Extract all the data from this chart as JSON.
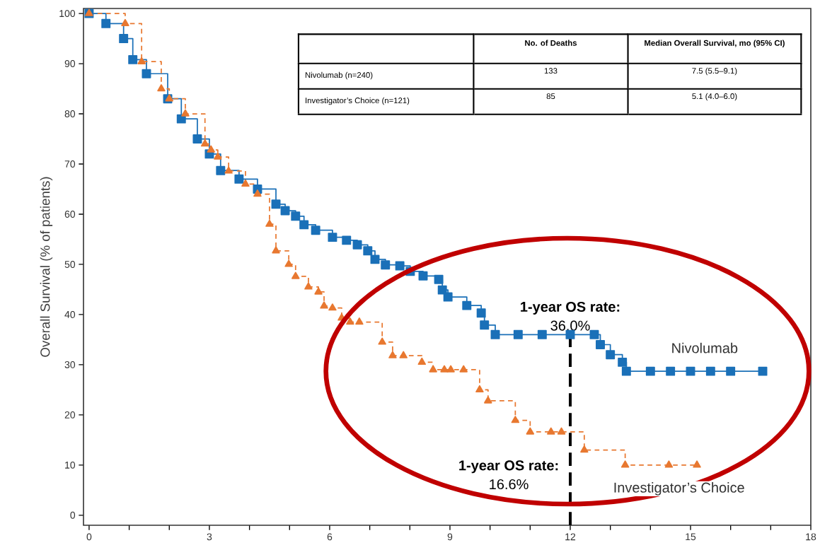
{
  "chart_data": {
    "type": "step",
    "ylabel": "Overall Survival (% of patients)",
    "xlim": [
      -0.14,
      18.0
    ],
    "ylim": [
      -2,
      101
    ],
    "xticks": [
      0,
      {
        "value": 1,
        "label": null
      },
      {
        "value": 2,
        "label": null
      },
      3,
      {
        "value": 4,
        "label": null
      },
      {
        "value": 5,
        "label": null
      },
      6,
      {
        "value": 7,
        "label": null
      },
      {
        "value": 8,
        "label": null
      },
      9,
      {
        "value": 10,
        "label": null
      },
      {
        "value": 11,
        "label": null
      },
      12,
      {
        "value": 13,
        "label": null
      },
      {
        "value": 14,
        "label": null
      },
      15,
      {
        "value": 16,
        "label": null
      },
      {
        "value": 17,
        "label": null
      },
      18
    ],
    "yticks": [
      0,
      10,
      20,
      30,
      40,
      50,
      60,
      70,
      80,
      90,
      100
    ],
    "series": [
      {
        "name": "Nivolumab",
        "color": "#1a70b8",
        "marker": "square",
        "line_style": "solid",
        "x": [
          0,
          0.42,
          0.86,
          1.09,
          1.43,
          1.96,
          2.3,
          2.7,
          3.0,
          3.28,
          3.74,
          4.2,
          4.66,
          4.89,
          5.15,
          5.36,
          5.65,
          6.07,
          6.42,
          6.69,
          6.95,
          7.13,
          7.39,
          7.75,
          8.01,
          8.33,
          8.72,
          8.81,
          8.95,
          9.42,
          9.78,
          9.86,
          10.13,
          10.7,
          11.3,
          12.0,
          12.6,
          12.75,
          13.0,
          13.3,
          13.4,
          14.0,
          14.5,
          15.0,
          15.5,
          16.0,
          16.8
        ],
        "values": [
          100,
          98,
          95,
          90.8,
          88,
          83,
          79,
          75,
          72,
          68.7,
          67,
          65,
          62,
          60.7,
          59.6,
          57.9,
          56.8,
          55.4,
          54.8,
          53.9,
          52.7,
          51,
          49.9,
          49.7,
          48.6,
          47.7,
          47,
          44.9,
          43.5,
          41.8,
          40.3,
          37.9,
          36.0,
          36.0,
          36.0,
          36.0,
          36.0,
          34,
          32,
          30.5,
          28.7,
          28.7,
          28.7,
          28.7,
          28.7,
          28.7,
          28.7
        ]
      },
      {
        "name": "Investigator’s Choice",
        "color": "#e87830",
        "marker": "triangle",
        "line_style": "dashed",
        "x": [
          0,
          0.9,
          1.31,
          1.8,
          2.0,
          2.4,
          2.89,
          3.04,
          3.21,
          3.48,
          3.9,
          4.2,
          4.5,
          4.66,
          4.98,
          5.15,
          5.47,
          5.72,
          5.86,
          6.07,
          6.3,
          6.51,
          6.74,
          7.31,
          7.57,
          7.84,
          8.3,
          8.58,
          8.86,
          9.02,
          9.34,
          9.74,
          9.95,
          10.63,
          11.0,
          11.52,
          11.78,
          12.35,
          13.37,
          14.46,
          15.16
        ],
        "values": [
          100,
          98,
          90.4,
          85,
          83,
          80,
          74,
          72.8,
          71.4,
          68.6,
          66,
          64,
          58,
          52.7,
          50,
          47.6,
          45.5,
          44.5,
          41.7,
          41.3,
          39.3,
          38.5,
          38.5,
          34.5,
          31.8,
          31.8,
          30.5,
          29,
          29,
          29,
          29,
          25,
          22.8,
          18.9,
          16.6,
          16.6,
          16.6,
          13,
          10,
          10,
          10
        ]
      }
    ],
    "ref_lines": [
      {
        "axis": "x",
        "value": 12,
        "color": "#000000",
        "line_style": "dashed"
      }
    ],
    "annotations": [
      {
        "text": "**1-year OS rate:** 36.0%",
        "x": 12,
        "y": 36.0
      },
      {
        "text": "**1-year OS rate:** 16.6%",
        "x": 12,
        "y": 16.6
      },
      "No. of Deaths",
      "Median Overall Survival, mo (95% CI)",
      "Nivolumab (n=240)",
      "133",
      "7.5 (5.5–9.1)",
      "Investigator’s Choice (n=121)",
      "85",
      "5.1 (4.0–6.0)"
    ]
  }
}
